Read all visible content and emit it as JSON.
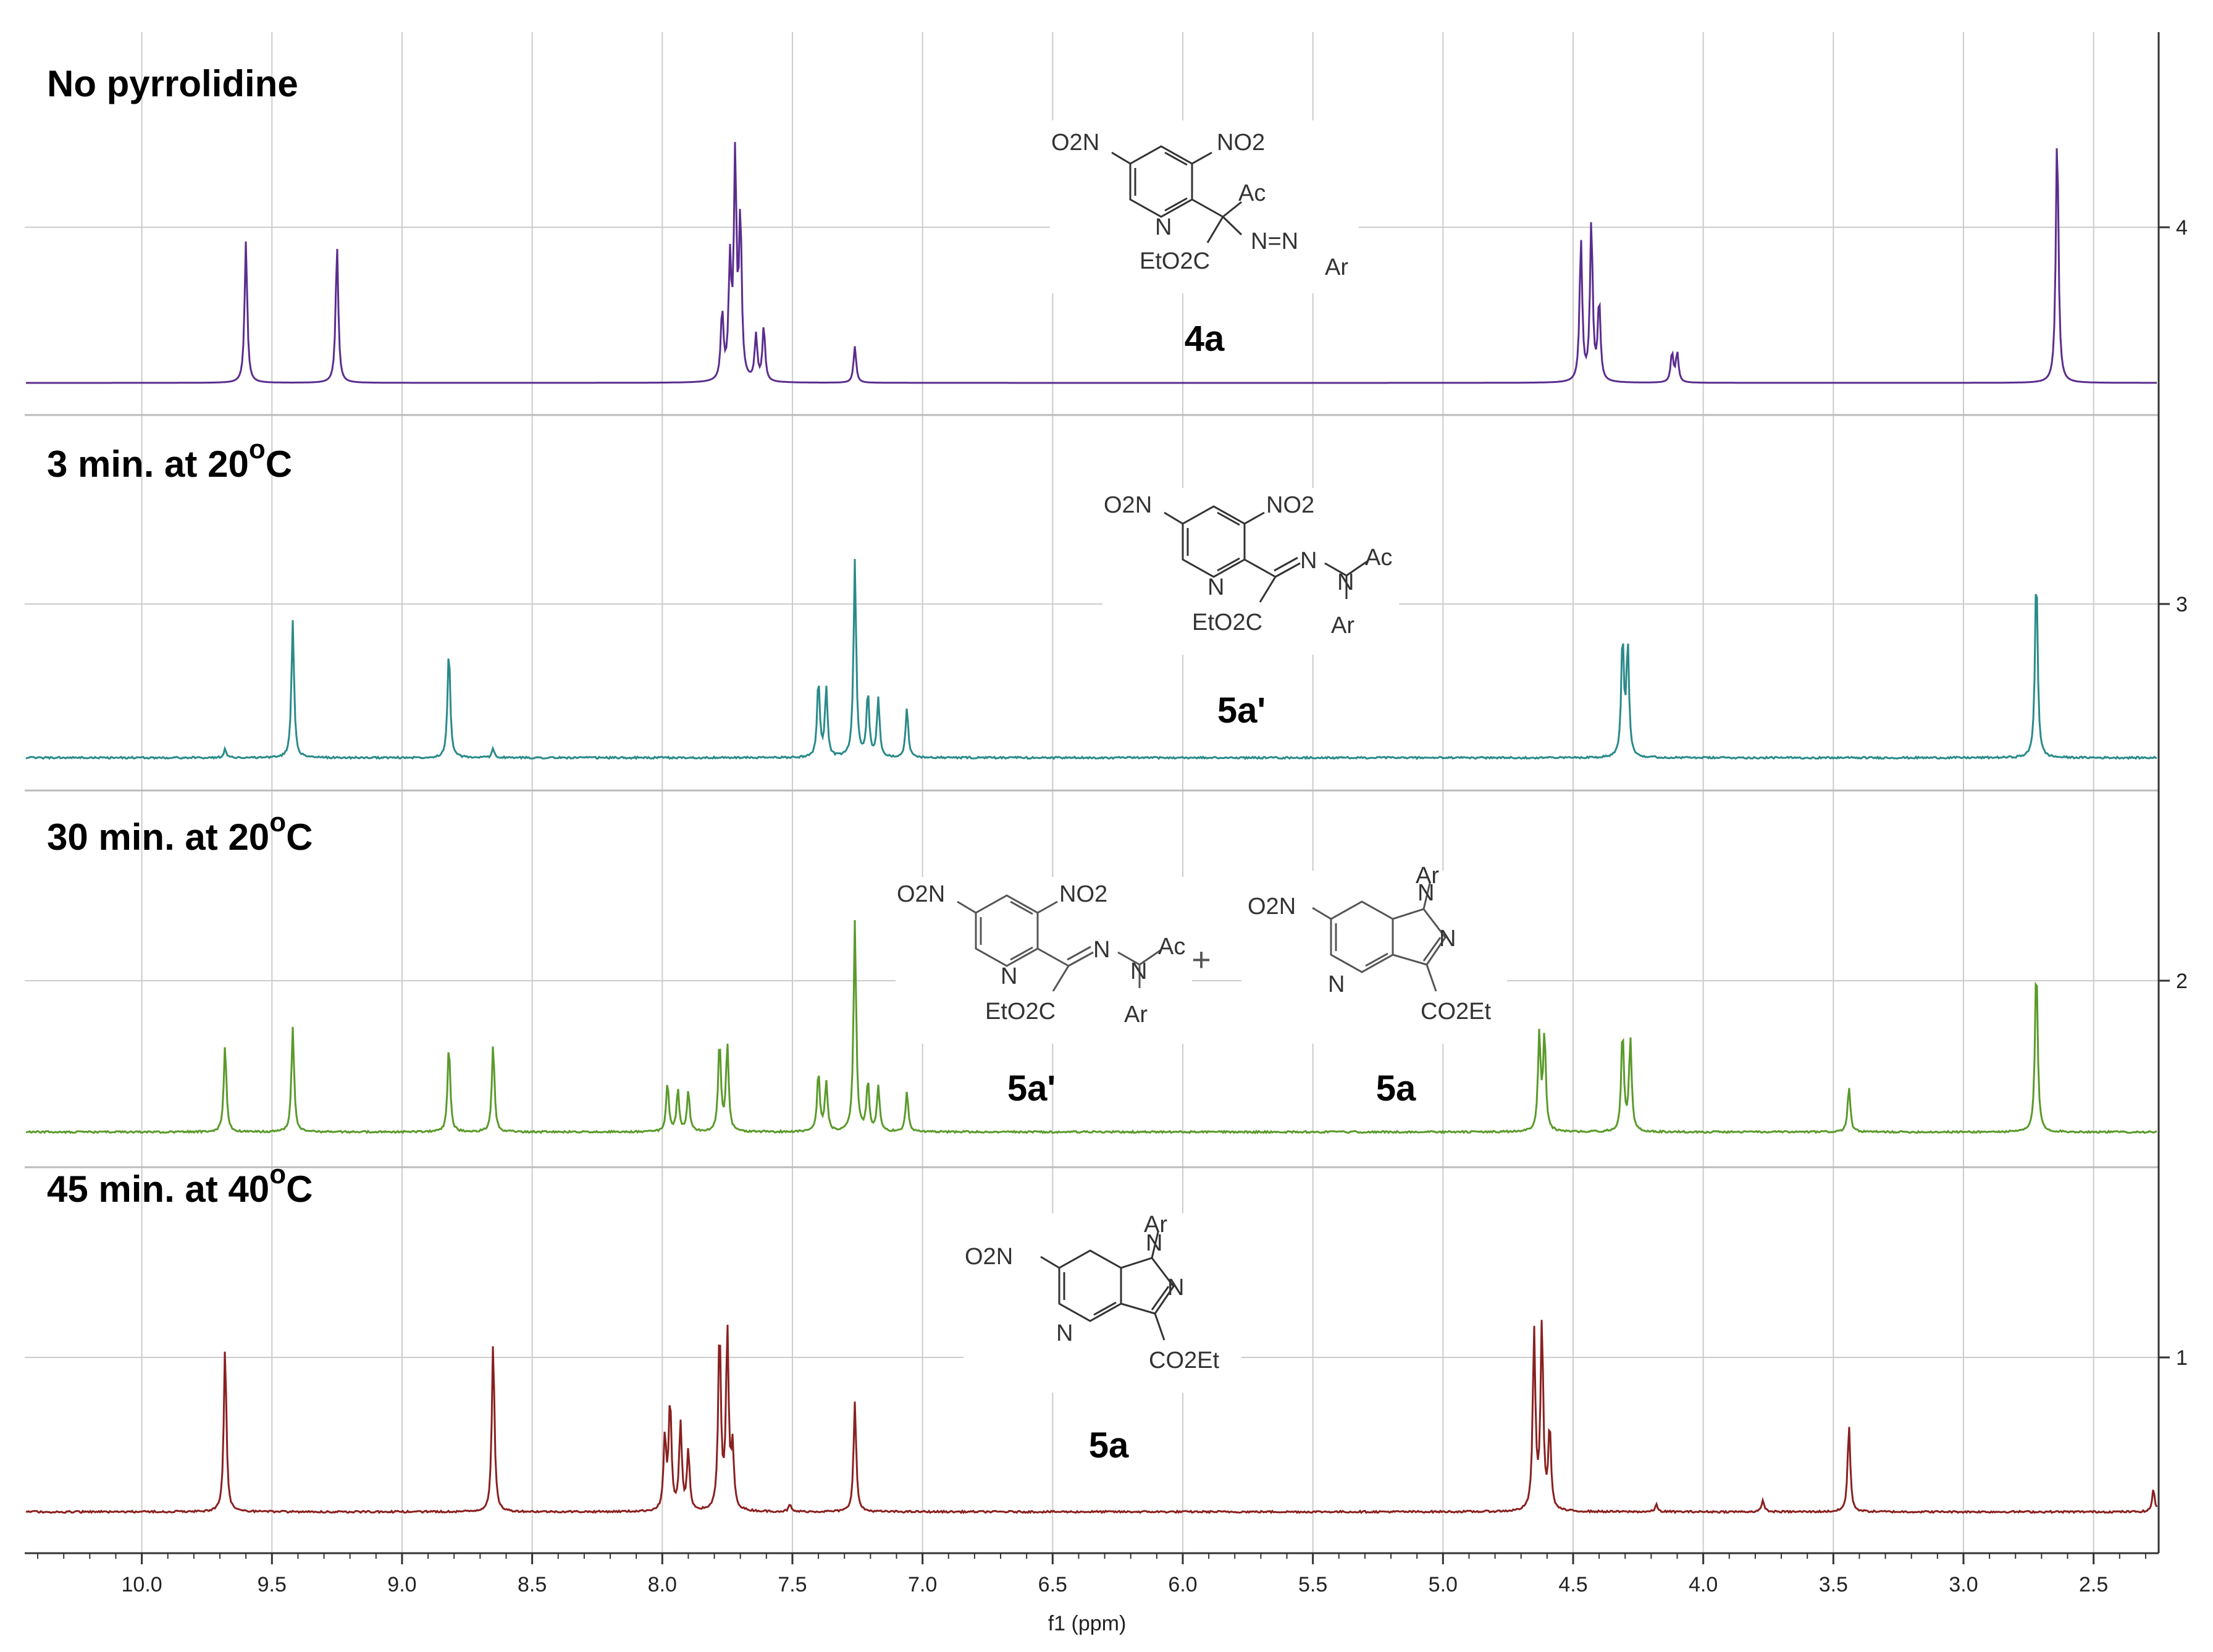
{
  "chart_data": {
    "type": "line",
    "title": "",
    "xlabel": "f1 (ppm)",
    "ylabel": "",
    "xlim": [
      10.45,
      2.25
    ],
    "x_reversed": true,
    "x_ticks": [
      10.0,
      9.5,
      9.0,
      8.5,
      8.0,
      7.5,
      7.0,
      6.5,
      6.0,
      5.5,
      5.0,
      4.5,
      4.0,
      3.5,
      3.0,
      2.5
    ],
    "right_ticks": [
      4,
      3,
      2,
      1
    ],
    "grid": true,
    "stacked": true,
    "series": [
      {
        "label": "No pyrrolidine",
        "color": "#5b2d8e",
        "compound_label": "4a",
        "peaks": [
          {
            "ppm": 9.6,
            "height": 0.62
          },
          {
            "ppm": 9.25,
            "height": 0.6
          },
          {
            "ppm": 7.77,
            "height": 0.3
          },
          {
            "ppm": 7.74,
            "height": 0.5
          },
          {
            "ppm": 7.72,
            "height": 0.96
          },
          {
            "ppm": 7.7,
            "height": 0.7
          },
          {
            "ppm": 7.64,
            "height": 0.2
          },
          {
            "ppm": 7.61,
            "height": 0.24
          },
          {
            "ppm": 7.26,
            "height": 0.16
          },
          {
            "ppm": 4.47,
            "height": 0.62
          },
          {
            "ppm": 4.43,
            "height": 0.7
          },
          {
            "ppm": 4.4,
            "height": 0.35
          },
          {
            "ppm": 4.12,
            "height": 0.13
          },
          {
            "ppm": 4.1,
            "height": 0.13
          },
          {
            "ppm": 2.64,
            "height": 1.1
          }
        ]
      },
      {
        "label": "3 min. at 20",
        "color": "#2a8a8a",
        "compound_label": "5a'",
        "peaks": [
          {
            "ppm": 9.68,
            "height": 0.04
          },
          {
            "ppm": 9.42,
            "height": 0.6
          },
          {
            "ppm": 8.82,
            "height": 0.48
          },
          {
            "ppm": 8.65,
            "height": 0.04
          },
          {
            "ppm": 7.4,
            "height": 0.34
          },
          {
            "ppm": 7.37,
            "height": 0.3
          },
          {
            "ppm": 7.26,
            "height": 0.86
          },
          {
            "ppm": 7.21,
            "height": 0.28
          },
          {
            "ppm": 7.17,
            "height": 0.26
          },
          {
            "ppm": 7.06,
            "height": 0.22
          },
          {
            "ppm": 4.31,
            "height": 0.52
          },
          {
            "ppm": 4.29,
            "height": 0.48
          },
          {
            "ppm": 2.72,
            "height": 0.82
          }
        ]
      },
      {
        "label": "30 min. at 20",
        "color": "#5a9a2a",
        "compound_label_1": "5a'",
        "compound_label_2": "5a",
        "peaks": [
          {
            "ppm": 9.68,
            "height": 0.38
          },
          {
            "ppm": 9.42,
            "height": 0.46
          },
          {
            "ppm": 8.82,
            "height": 0.38
          },
          {
            "ppm": 8.65,
            "height": 0.38
          },
          {
            "ppm": 7.98,
            "height": 0.22
          },
          {
            "ppm": 7.94,
            "height": 0.18
          },
          {
            "ppm": 7.9,
            "height": 0.18
          },
          {
            "ppm": 7.78,
            "height": 0.4
          },
          {
            "ppm": 7.75,
            "height": 0.38
          },
          {
            "ppm": 7.4,
            "height": 0.26
          },
          {
            "ppm": 7.37,
            "height": 0.22
          },
          {
            "ppm": 7.26,
            "height": 0.92
          },
          {
            "ppm": 7.21,
            "height": 0.22
          },
          {
            "ppm": 7.17,
            "height": 0.2
          },
          {
            "ppm": 7.06,
            "height": 0.18
          },
          {
            "ppm": 4.63,
            "height": 0.42
          },
          {
            "ppm": 4.61,
            "height": 0.42
          },
          {
            "ppm": 4.31,
            "height": 0.44
          },
          {
            "ppm": 4.28,
            "height": 0.4
          },
          {
            "ppm": 3.44,
            "height": 0.2
          },
          {
            "ppm": 2.72,
            "height": 0.74
          }
        ]
      },
      {
        "label": "45 min. at 40",
        "color": "#8a2020",
        "compound_label": "5a",
        "peaks": [
          {
            "ppm": 9.68,
            "height": 0.72
          },
          {
            "ppm": 8.65,
            "height": 0.74
          },
          {
            "ppm": 7.99,
            "height": 0.32
          },
          {
            "ppm": 7.97,
            "height": 0.48
          },
          {
            "ppm": 7.93,
            "height": 0.38
          },
          {
            "ppm": 7.9,
            "height": 0.26
          },
          {
            "ppm": 7.78,
            "height": 0.8
          },
          {
            "ppm": 7.75,
            "height": 0.78
          },
          {
            "ppm": 7.73,
            "height": 0.26
          },
          {
            "ppm": 7.51,
            "height": 0.03
          },
          {
            "ppm": 7.26,
            "height": 0.48
          },
          {
            "ppm": 4.65,
            "height": 0.78
          },
          {
            "ppm": 4.62,
            "height": 0.82
          },
          {
            "ppm": 4.59,
            "height": 0.36
          },
          {
            "ppm": 4.18,
            "height": 0.03
          },
          {
            "ppm": 3.77,
            "height": 0.05
          },
          {
            "ppm": 3.44,
            "height": 0.38
          },
          {
            "ppm": 2.27,
            "height": 0.1
          }
        ]
      }
    ]
  },
  "panels": [
    {
      "title": "No pyrrolidine",
      "temp": "",
      "temp_sup": "",
      "temp_unit": ""
    },
    {
      "title": "3 min. at 20",
      "temp_sup": "o",
      "temp_unit": "C"
    },
    {
      "title": "30 min. at 20",
      "temp_sup": "o",
      "temp_unit": "C"
    },
    {
      "title": "45 min. at 40",
      "temp_sup": "o",
      "temp_unit": "C"
    }
  ],
  "structures": {
    "s4a": {
      "o2n": "O2N",
      "no2": "NO2",
      "ac": "Ac",
      "n": "N",
      "eto2c": "EtO2C",
      "nn": "N=N",
      "ar": "Ar"
    },
    "s5ap": {
      "o2n": "O2N",
      "no2": "NO2",
      "n": "N",
      "nn": "N",
      "n2": "N",
      "ac": "Ac",
      "eto2c": "EtO2C",
      "ar": "Ar"
    },
    "s5a": {
      "o2n": "O2N",
      "n": "N",
      "n1": "N",
      "n2": "N",
      "ar": "Ar",
      "co2et": "CO2Et"
    },
    "plus": "+"
  }
}
